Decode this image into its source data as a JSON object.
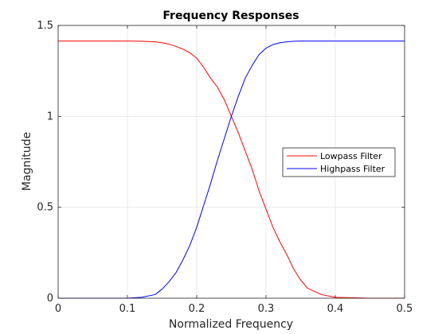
{
  "chart_data": {
    "type": "line",
    "title": "Frequency Responses",
    "xlabel": "Normalized Frequency",
    "ylabel": "Magnitude",
    "xlim": [
      0,
      0.5
    ],
    "ylim": [
      0,
      1.5
    ],
    "xticks": [
      0,
      0.1,
      0.2,
      0.3,
      0.4,
      0.5
    ],
    "xtick_labels": [
      "0",
      "0.1",
      "0.2",
      "0.3",
      "0.4",
      "0.5"
    ],
    "yticks": [
      0,
      0.5,
      1,
      1.5
    ],
    "ytick_labels": [
      "0",
      "0.5",
      "1",
      "1.5"
    ],
    "grid": true,
    "legend_position": "right",
    "x": [
      0,
      0.05,
      0.1,
      0.12,
      0.14,
      0.15,
      0.16,
      0.17,
      0.18,
      0.19,
      0.2,
      0.21,
      0.22,
      0.23,
      0.24,
      0.25,
      0.26,
      0.27,
      0.28,
      0.29,
      0.3,
      0.31,
      0.32,
      0.33,
      0.34,
      0.35,
      0.36,
      0.38,
      0.4,
      0.45,
      0.5
    ],
    "series": [
      {
        "name": "Lowpass Filter",
        "color": "#ff0000",
        "values": [
          1.414,
          1.414,
          1.414,
          1.413,
          1.41,
          1.405,
          1.397,
          1.385,
          1.37,
          1.35,
          1.32,
          1.27,
          1.21,
          1.16,
          1.09,
          1.0,
          0.91,
          0.81,
          0.71,
          0.59,
          0.49,
          0.39,
          0.31,
          0.24,
          0.16,
          0.1,
          0.055,
          0.02,
          0.005,
          0.0,
          0.0
        ]
      },
      {
        "name": "Highpass Filter",
        "color": "#0000ff",
        "values": [
          0.0,
          0.0,
          0.0,
          0.005,
          0.02,
          0.05,
          0.09,
          0.14,
          0.21,
          0.29,
          0.39,
          0.51,
          0.63,
          0.76,
          0.88,
          1.0,
          1.11,
          1.21,
          1.28,
          1.34,
          1.375,
          1.395,
          1.405,
          1.41,
          1.413,
          1.414,
          1.414,
          1.414,
          1.414,
          1.414,
          1.414
        ]
      }
    ]
  }
}
